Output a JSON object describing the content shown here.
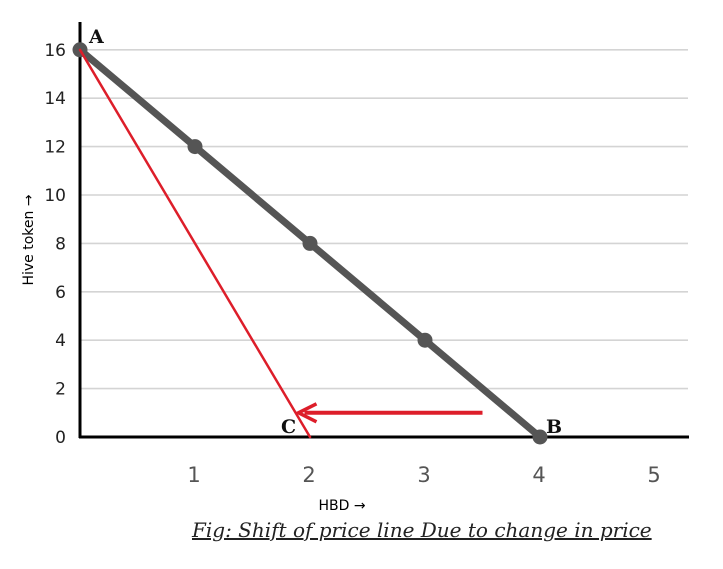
{
  "chart_data": {
    "type": "line",
    "xlabel": "HBD →",
    "ylabel": "Hive token →",
    "xlim": [
      0,
      5
    ],
    "ylim": [
      0,
      16
    ],
    "x_ticks": [
      "1",
      "2",
      "3",
      "4",
      "5"
    ],
    "y_ticks": [
      "0",
      "2",
      "4",
      "6",
      "8",
      "10",
      "12",
      "14",
      "16"
    ],
    "grid": "horizontal",
    "series": [
      {
        "color": "#555555",
        "x": [
          0,
          1,
          2,
          3,
          4
        ],
        "y": [
          16,
          12,
          8,
          4,
          0
        ],
        "markers": true
      },
      {
        "color": "#dd1e2a",
        "x": [
          0,
          2
        ],
        "y": [
          16,
          0
        ],
        "markers": false
      }
    ],
    "point_labels": [
      {
        "text": "A",
        "x": 0,
        "y": 16
      },
      {
        "text": "B",
        "x": 4,
        "y": 0
      },
      {
        "text": "C",
        "x": 2,
        "y": 0
      }
    ],
    "arrow": {
      "color": "#dd1e2a",
      "from": [
        3.5,
        1
      ],
      "to": [
        1.9,
        1
      ]
    },
    "caption": "Fig: Shift of price line Due to change in price"
  }
}
